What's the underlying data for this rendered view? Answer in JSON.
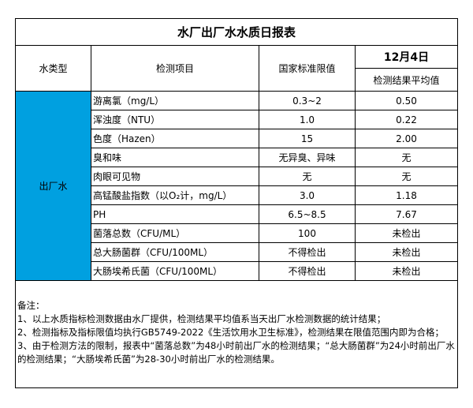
{
  "title": "水厂出厂水水质日报表",
  "headers": {
    "water_type": "水类型",
    "item": "检测项目",
    "standard": "国家标准限值",
    "date": "12月4日",
    "result": "检测结果平均值"
  },
  "water_type_value": "出厂水",
  "rows": [
    {
      "item": "游离氯（mg/L）",
      "standard": "0.3~2",
      "result": "0.50"
    },
    {
      "item": "浑浊度（NTU）",
      "standard": "1.0",
      "result": "0.22"
    },
    {
      "item": "色度（Hazen）",
      "standard": "15",
      "result": "2.00"
    },
    {
      "item": "臭和味",
      "standard": "无异臭、异味",
      "result": "无"
    },
    {
      "item": "肉眼可见物",
      "standard": "无",
      "result": "无"
    },
    {
      "item": "高锰酸盐指数（以O₂计，mg/L）",
      "standard": "3.0",
      "result": "1.18"
    },
    {
      "item": "PH",
      "standard": "6.5~8.5",
      "result": "7.67"
    },
    {
      "item": "菌落总数（CFU/ML）",
      "standard": "100",
      "result": "未检出"
    },
    {
      "item": "总大肠菌群（CFU/100ML）",
      "standard": "不得检出",
      "result": "未检出"
    },
    {
      "item": "大肠埃希氏菌（CFU/100ML）",
      "standard": "不得检出",
      "result": "未检出"
    }
  ],
  "notes": [
    "备注：",
    "1、以上水质指标检测数据由水厂提供，检测结果平均值系当天出厂水检测数据的统计结果；",
    "2、检测指标及指标限值均执行GB5749-2022《生活饮用水卫生标准》，检测结果在限值范围内即为合格；",
    "3、由于检测方法的限制，报表中“菌落总数”为48小时前出厂水的检测结果；“总大肠菌群”为24小时前出厂水的检测结果；“大肠埃希氏菌”为28-30小时前出厂水的检测结果。"
  ],
  "colors": {
    "water_type_cell": "#00A0E0"
  }
}
